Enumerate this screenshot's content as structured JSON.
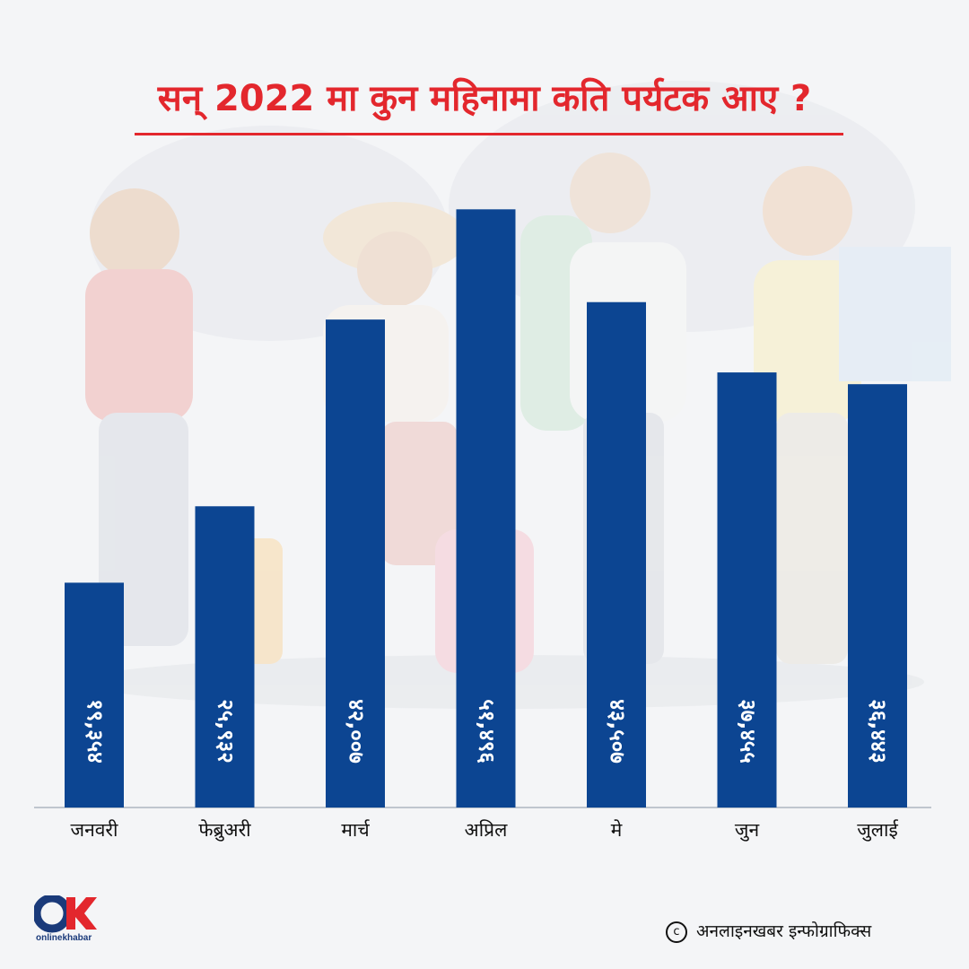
{
  "title": "सन् 2022 मा कुन महिनामा कति पर्यटक आए ?",
  "chart_data": {
    "type": "bar",
    "title": "सन् 2022 मा कुन महिनामा कति पर्यटक आए ?",
    "categories": [
      "जनवरी",
      "फेब्रुअरी",
      "मार्च",
      "अप्रिल",
      "मे",
      "जुन",
      "जुलाई"
    ],
    "values": [
      19354,
      25932,
      42007,
      51496,
      43507,
      37455,
      36443
    ],
    "value_labels": [
      "१९,३५४",
      "२५,९३२",
      "४२,००७",
      "५१,४९६",
      "४३,५०७",
      "३७,४५५",
      "३६,४४३"
    ],
    "ylim": [
      0,
      56000
    ],
    "grid": false,
    "bar_color": "#0c4592"
  },
  "footer": {
    "credit": "अनलाइनखबर इन्फोग्राफिक्स",
    "copyright_symbol": "c",
    "logo_text": "onlinekhabar"
  },
  "colors": {
    "title": "#e3272d",
    "logo_red": "#e3272d",
    "logo_blue": "#1a3a7a"
  }
}
